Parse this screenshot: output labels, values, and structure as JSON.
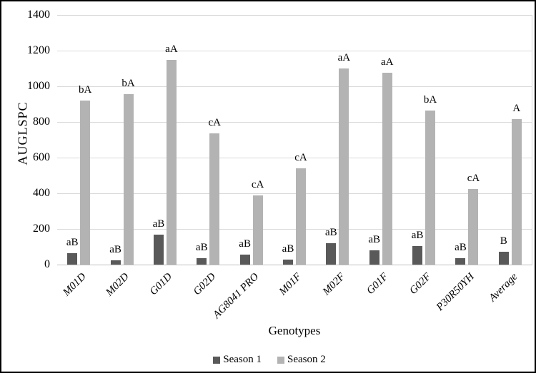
{
  "chart_data": {
    "type": "bar",
    "title": "",
    "xlabel": "Genotypes",
    "ylabel": "AUGLSPC",
    "categories": [
      "M01D",
      "M02D",
      "G01D",
      "G02D",
      "AG8041 PRO",
      "M01F",
      "M02F",
      "G01F",
      "G02F",
      "P30R50YH",
      "Average"
    ],
    "series": [
      {
        "name": "Season 1",
        "color": "#595959",
        "values": [
          65,
          25,
          170,
          35,
          55,
          28,
          120,
          80,
          105,
          38,
          72
        ],
        "point_labels": [
          "aB",
          "aB",
          "aB",
          "aB",
          "aB",
          "aB",
          "aB",
          "aB",
          "aB",
          "aB",
          "B"
        ]
      },
      {
        "name": "Season 2",
        "color": "#b3b3b3",
        "values": [
          920,
          955,
          1150,
          735,
          390,
          540,
          1100,
          1075,
          865,
          425,
          815
        ],
        "point_labels": [
          "bA",
          "bA",
          "aA",
          "cA",
          "cA",
          "cA",
          "aA",
          "aA",
          "bA",
          "cA",
          "A"
        ]
      }
    ],
    "ylim": [
      0,
      1400
    ],
    "yticks": [
      0,
      200,
      400,
      600,
      800,
      1000,
      1200,
      1400
    ],
    "grid": true,
    "legend_position": "bottom"
  },
  "colors": {
    "background": "#ffffff",
    "border": "#000000",
    "gridline": "#d9d9d9",
    "axis_line": "#bfbfbf",
    "season1": "#595959",
    "season2": "#b3b3b3",
    "text": "#000000"
  }
}
